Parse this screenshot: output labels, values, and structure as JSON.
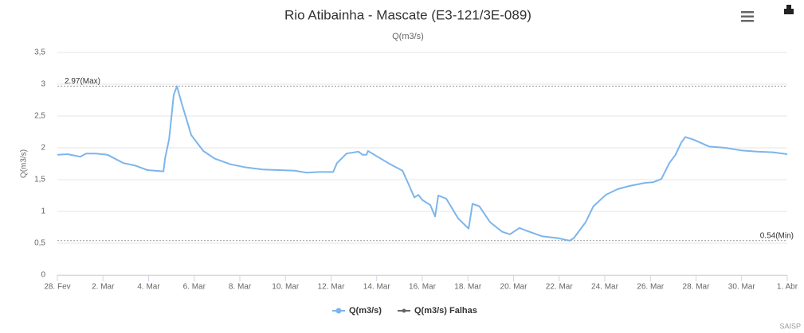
{
  "chart_data": {
    "type": "line",
    "title": "Rio Atibainha - Mascate (E3-121/3E-089)",
    "subtitle": "Q(m3/s)",
    "y_label": "Q(m3/s)",
    "credits": "SAISP",
    "x": [
      0,
      0.45,
      1.0,
      1.26,
      1.68,
      2.2,
      2.9,
      3.42,
      3.95,
      4.65,
      4.72,
      4.9,
      5.1,
      5.24,
      5.45,
      5.87,
      6.4,
      6.9,
      7.6,
      8.3,
      9.0,
      9.7,
      10.4,
      10.93,
      11.46,
      12.09,
      12.26,
      12.68,
      13.2,
      13.38,
      13.55,
      13.62,
      13.9,
      14.6,
      15.13,
      15.37,
      15.65,
      15.83,
      16.0,
      16.35,
      16.56,
      16.7,
      17.05,
      17.57,
      18.03,
      18.2,
      18.5,
      18.97,
      19.5,
      19.84,
      20.26,
      20.54,
      21.24,
      21.94,
      22.46,
      22.64,
      23.16,
      23.5,
      24.04,
      24.56,
      25.08,
      25.78,
      26.13,
      26.48,
      26.83,
      27.1,
      27.35,
      27.53,
      27.88,
      28.58,
      29.28,
      29.97,
      30.67,
      31.37,
      32
    ],
    "series": [
      {
        "name": "Q(m3/s)",
        "color": "#7cb5ec",
        "values": [
          1.89,
          1.9,
          1.86,
          1.91,
          1.91,
          1.89,
          1.76,
          1.72,
          1.65,
          1.63,
          1.83,
          2.14,
          2.83,
          2.97,
          2.7,
          2.2,
          1.95,
          1.83,
          1.74,
          1.69,
          1.66,
          1.65,
          1.64,
          1.61,
          1.62,
          1.62,
          1.76,
          1.91,
          1.94,
          1.89,
          1.89,
          1.95,
          1.89,
          1.74,
          1.64,
          1.45,
          1.22,
          1.26,
          1.18,
          1.1,
          0.92,
          1.25,
          1.2,
          0.89,
          0.73,
          1.12,
          1.08,
          0.83,
          0.68,
          0.64,
          0.74,
          0.7,
          0.61,
          0.58,
          0.54,
          0.58,
          0.83,
          1.08,
          1.26,
          1.35,
          1.4,
          1.45,
          1.46,
          1.51,
          1.76,
          1.89,
          2.08,
          2.17,
          2.13,
          2.02,
          2.0,
          1.96,
          1.94,
          1.93,
          1.9
        ]
      },
      {
        "name": "Q(m3/s) Falhas",
        "color": "#666666",
        "values": [
          null,
          null,
          null,
          null,
          null,
          null,
          null,
          null,
          null,
          null,
          null,
          null,
          null,
          null,
          null,
          null,
          null,
          null,
          null,
          null,
          null,
          null,
          null,
          null,
          null,
          null,
          null,
          null,
          null,
          null,
          null,
          null,
          null,
          null,
          null,
          null,
          null,
          null,
          null,
          null,
          null,
          null,
          null,
          null,
          null,
          null,
          null,
          null,
          null,
          null,
          null,
          null,
          null,
          null,
          null,
          null,
          null,
          null,
          null,
          null,
          null,
          null,
          null,
          null,
          null,
          null,
          null,
          null,
          null,
          null,
          null,
          null,
          null,
          null,
          null
        ]
      }
    ],
    "xlim": [
      0,
      32
    ],
    "xticks": [
      {
        "value": 0,
        "label": "28. Fev"
      },
      {
        "value": 2,
        "label": "2. Mar"
      },
      {
        "value": 4,
        "label": "4. Mar"
      },
      {
        "value": 6,
        "label": "6. Mar"
      },
      {
        "value": 8,
        "label": "8. Mar"
      },
      {
        "value": 10,
        "label": "10. Mar"
      },
      {
        "value": 12,
        "label": "12. Mar"
      },
      {
        "value": 14,
        "label": "14. Mar"
      },
      {
        "value": 16,
        "label": "16. Mar"
      },
      {
        "value": 18,
        "label": "18. Mar"
      },
      {
        "value": 20,
        "label": "20. Mar"
      },
      {
        "value": 22,
        "label": "22. Mar"
      },
      {
        "value": 24,
        "label": "24. Mar"
      },
      {
        "value": 26,
        "label": "26. Mar"
      },
      {
        "value": 28,
        "label": "28. Mar"
      },
      {
        "value": 30,
        "label": "30. Mar"
      },
      {
        "value": 32,
        "label": "1. Abr"
      }
    ],
    "ylim": [
      0,
      3.5
    ],
    "yticks": [
      0,
      {
        "value": 0.5,
        "label": "0,5"
      },
      1,
      {
        "value": 1.5,
        "label": "1,5"
      },
      2,
      {
        "value": 2.5,
        "label": "2,5"
      },
      3,
      {
        "value": 3.5,
        "label": "3,5"
      }
    ],
    "grid": true,
    "plot_lines": [
      {
        "value": 2.97,
        "label": "2.97(Max)"
      },
      {
        "value": 0.54,
        "label": "0.54(Min)"
      }
    ]
  }
}
